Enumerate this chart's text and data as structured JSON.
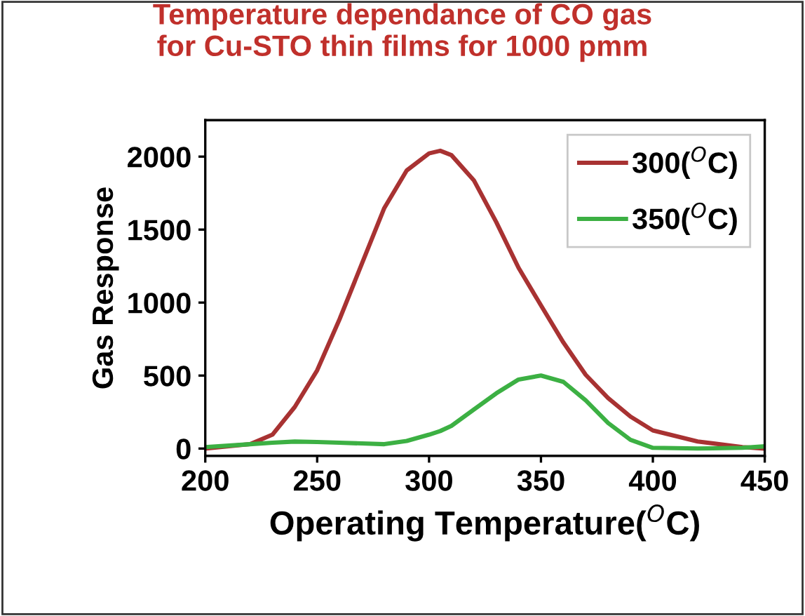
{
  "chart_data": {
    "type": "line",
    "title": "Temperature dependance of CO gas\nfor Cu-STO thin films for 1000 pmm",
    "xlabel": "Operating Temperature($^{O}$C)",
    "ylabel": "Gas Response",
    "x": [
      200,
      220,
      230,
      240,
      250,
      260,
      270,
      280,
      290,
      300,
      305,
      310,
      320,
      330,
      340,
      350,
      360,
      370,
      380,
      390,
      400,
      420,
      440,
      450
    ],
    "series": [
      {
        "name": "300($^{O}$C)",
        "color": "#a83232",
        "values": [
          0,
          30,
          95,
          285,
          536,
          886,
          1267,
          1648,
          1905,
          2022,
          2040,
          2010,
          1838,
          1552,
          1238,
          981,
          727,
          505,
          346,
          219,
          124,
          48,
          10,
          0
        ]
      },
      {
        "name": "350($^{O}$C)",
        "color": "#3cb043",
        "values": [
          10,
          30,
          40,
          48,
          45,
          40,
          35,
          30,
          52,
          95,
          120,
          155,
          267,
          378,
          473,
          500,
          457,
          330,
          175,
          60,
          5,
          0,
          5,
          15
        ]
      }
    ],
    "xlim": [
      200,
      450
    ],
    "ylim": [
      -50,
      2250
    ],
    "xticks": [
      200,
      250,
      300,
      350,
      400,
      450
    ],
    "yticks": [
      0,
      500,
      1000,
      1500,
      2000
    ],
    "grid": false,
    "legend": "top right",
    "line_style": "solid",
    "marker": "none"
  }
}
